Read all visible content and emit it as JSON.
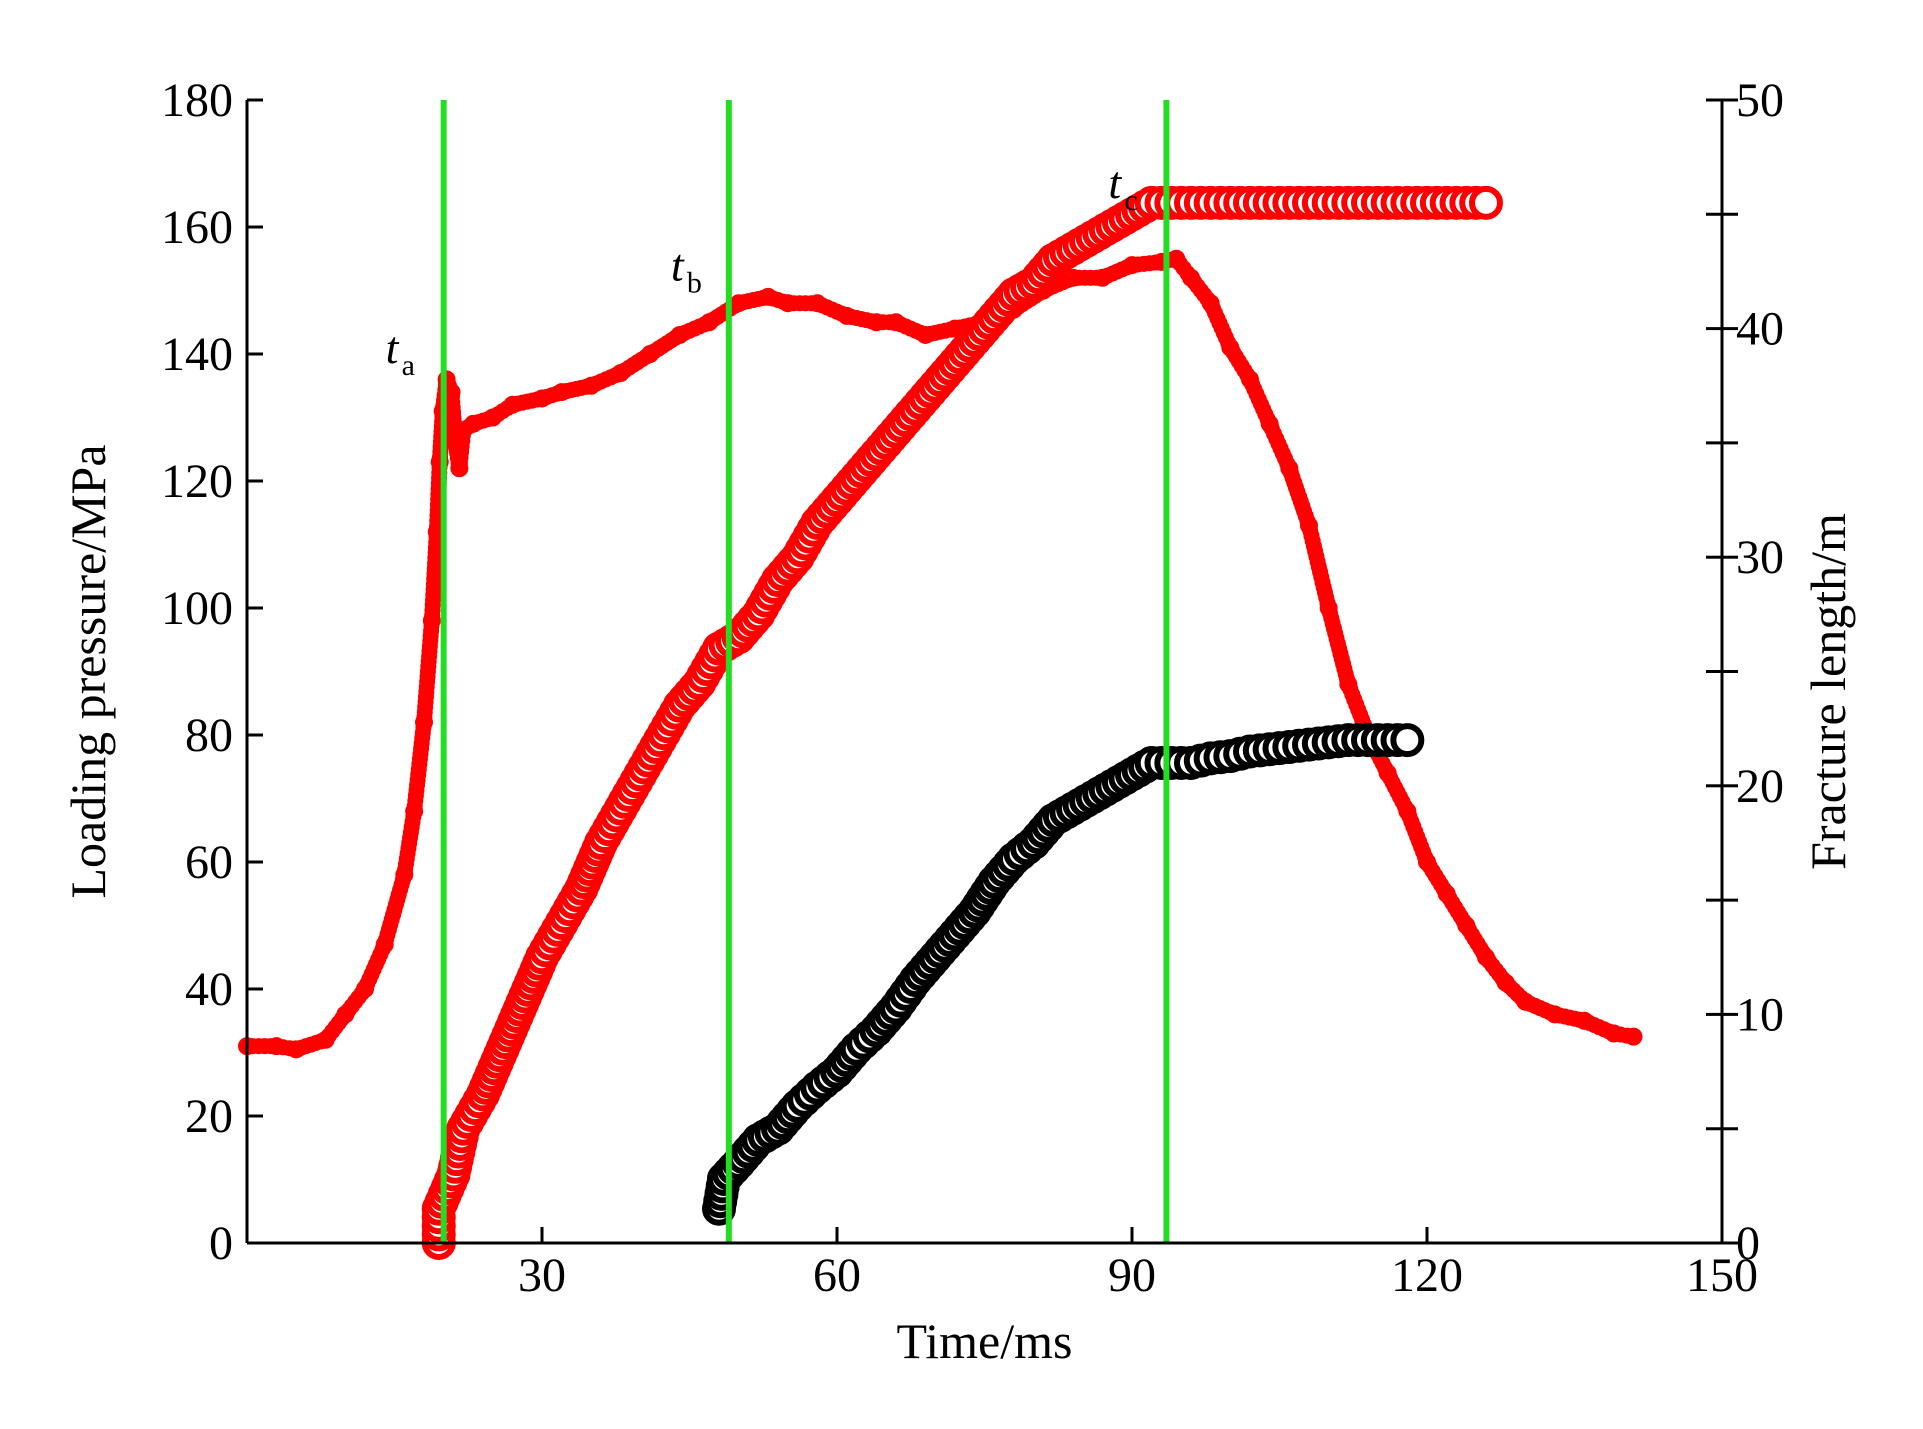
{
  "chart_data": {
    "type": "scatter",
    "xlabel": "Time/ms",
    "ylabel_left": "Loading pressure/MPa",
    "ylabel_right": "Fracture length/m",
    "xlim": [
      0,
      150
    ],
    "ylim_left": [
      0,
      180
    ],
    "ylim_right": [
      0,
      50
    ],
    "grid": false,
    "x_ticks": [
      {
        "value": 30,
        "label": "30"
      },
      {
        "value": 60,
        "label": "60"
      },
      {
        "value": 90,
        "label": "90"
      },
      {
        "value": 120,
        "label": "120"
      },
      {
        "value": 150,
        "label": "150"
      }
    ],
    "y_left_ticks": [
      {
        "value": 0,
        "label": "0"
      },
      {
        "value": 20,
        "label": "20"
      },
      {
        "value": 40,
        "label": "40"
      },
      {
        "value": 60,
        "label": "60"
      },
      {
        "value": 80,
        "label": "80"
      },
      {
        "value": 100,
        "label": "100"
      },
      {
        "value": 120,
        "label": "120"
      },
      {
        "value": 140,
        "label": "140"
      },
      {
        "value": 160,
        "label": "160"
      },
      {
        "value": 180,
        "label": "180"
      }
    ],
    "y_right_ticks": [
      {
        "value": 0,
        "label": "0"
      },
      {
        "value": 10,
        "label": "10"
      },
      {
        "value": 20,
        "label": "20"
      },
      {
        "value": 30,
        "label": "30"
      },
      {
        "value": 40,
        "label": "40"
      },
      {
        "value": 50,
        "label": "50"
      }
    ],
    "y_right_minor_ticks": [
      5,
      15,
      25,
      35,
      45
    ],
    "vertical_markers": [
      {
        "x": 20,
        "label": "t",
        "sub": "a",
        "label_y": 137
      },
      {
        "x": 49,
        "label": "t",
        "sub": "b",
        "label_y": 150
      },
      {
        "x": 93.5,
        "label": "t",
        "sub": "c",
        "label_y": 163
      }
    ],
    "series": [
      {
        "axis": "left",
        "color": "#ff0000",
        "marker": "dot",
        "points": [
          [
            0,
            31
          ],
          [
            3,
            31
          ],
          [
            5,
            30.5
          ],
          [
            8,
            32
          ],
          [
            10,
            36
          ],
          [
            12,
            40
          ],
          [
            14,
            47
          ],
          [
            16,
            58
          ],
          [
            17,
            68
          ],
          [
            18,
            82
          ],
          [
            18.8,
            98
          ],
          [
            19.3,
            112
          ],
          [
            19.6,
            123
          ],
          [
            19.9,
            131
          ],
          [
            20.3,
            136
          ],
          [
            20.8,
            134
          ],
          [
            21.2,
            126
          ],
          [
            21.6,
            122
          ],
          [
            22,
            128
          ],
          [
            23,
            129
          ],
          [
            25,
            130
          ],
          [
            27,
            132
          ],
          [
            30,
            133
          ],
          [
            32,
            134
          ],
          [
            35,
            135
          ],
          [
            38,
            137
          ],
          [
            41,
            140
          ],
          [
            44,
            143
          ],
          [
            47,
            145
          ],
          [
            50,
            148
          ],
          [
            53,
            149
          ],
          [
            55,
            148
          ],
          [
            58,
            148
          ],
          [
            61,
            146
          ],
          [
            64,
            145
          ],
          [
            66,
            145
          ],
          [
            69,
            143
          ],
          [
            72,
            144
          ],
          [
            75,
            145
          ],
          [
            78,
            147
          ],
          [
            81,
            150
          ],
          [
            84,
            152
          ],
          [
            87,
            152
          ],
          [
            90,
            154
          ],
          [
            93,
            154.5
          ],
          [
            94.5,
            155
          ],
          [
            96,
            152
          ],
          [
            98,
            148
          ],
          [
            100,
            141
          ],
          [
            102,
            136
          ],
          [
            104,
            129
          ],
          [
            106,
            122
          ],
          [
            108,
            113
          ],
          [
            110,
            100
          ],
          [
            112,
            88
          ],
          [
            114,
            80
          ],
          [
            116,
            74
          ],
          [
            118,
            68
          ],
          [
            120,
            60
          ],
          [
            122,
            55
          ],
          [
            124,
            50
          ],
          [
            126,
            45
          ],
          [
            128,
            41
          ],
          [
            130,
            38
          ],
          [
            133,
            36
          ],
          [
            136,
            35
          ],
          [
            139,
            33
          ],
          [
            141,
            32.5
          ]
        ]
      },
      {
        "axis": "right",
        "color": "#ff0000",
        "marker": "ring",
        "points": [
          [
            19.5,
            0
          ],
          [
            19.5,
            1.5
          ],
          [
            21,
            3
          ],
          [
            22,
            5
          ],
          [
            24,
            6.5
          ],
          [
            26,
            8.5
          ],
          [
            28,
            10.5
          ],
          [
            30,
            12.5
          ],
          [
            32,
            14
          ],
          [
            34,
            15.5
          ],
          [
            36,
            17.5
          ],
          [
            38,
            19
          ],
          [
            40,
            20.5
          ],
          [
            42,
            22
          ],
          [
            44,
            23.5
          ],
          [
            46,
            24.5
          ],
          [
            48,
            26
          ],
          [
            50,
            26.5
          ],
          [
            52,
            27.5
          ],
          [
            54,
            29
          ],
          [
            56,
            30
          ],
          [
            58,
            31.5
          ],
          [
            60,
            32.5
          ],
          [
            62,
            33.5
          ],
          [
            64,
            34.5
          ],
          [
            66,
            35.5
          ],
          [
            68,
            36.5
          ],
          [
            70,
            37.5
          ],
          [
            72,
            38.5
          ],
          [
            74,
            39.5
          ],
          [
            76,
            40.5
          ],
          [
            78,
            41.5
          ],
          [
            80,
            42
          ],
          [
            82,
            43
          ],
          [
            84,
            43.5
          ],
          [
            86,
            44
          ],
          [
            88,
            44.5
          ],
          [
            90,
            45
          ],
          [
            92,
            45.5
          ],
          [
            94,
            45.5
          ],
          [
            96,
            45.5
          ],
          [
            98,
            45.5
          ],
          [
            100,
            45.5
          ],
          [
            102,
            45.5
          ],
          [
            104,
            45.5
          ],
          [
            106,
            45.5
          ],
          [
            108,
            45.5
          ],
          [
            110,
            45.5
          ],
          [
            112,
            45.5
          ],
          [
            114,
            45.5
          ],
          [
            116,
            45.5
          ],
          [
            118,
            45.5
          ],
          [
            120,
            45.5
          ],
          [
            122,
            45.5
          ],
          [
            124,
            45.5
          ],
          [
            126,
            45.5
          ]
        ]
      },
      {
        "axis": "right",
        "color": "#000000",
        "marker": "ring",
        "points": [
          [
            48,
            1.5
          ],
          [
            48.5,
            2.8
          ],
          [
            50,
            3.5
          ],
          [
            52,
            4.5
          ],
          [
            54,
            5
          ],
          [
            56,
            6
          ],
          [
            58,
            6.8
          ],
          [
            60,
            7.5
          ],
          [
            62,
            8.5
          ],
          [
            64,
            9.3
          ],
          [
            66,
            10.3
          ],
          [
            68,
            11.5
          ],
          [
            70,
            12.5
          ],
          [
            72,
            13.5
          ],
          [
            74,
            14.5
          ],
          [
            76,
            15.8
          ],
          [
            78,
            16.8
          ],
          [
            80,
            17.5
          ],
          [
            82,
            18.5
          ],
          [
            84,
            19
          ],
          [
            86,
            19.5
          ],
          [
            88,
            20
          ],
          [
            90,
            20.5
          ],
          [
            92,
            21
          ],
          [
            94,
            21
          ],
          [
            96,
            21
          ],
          [
            98,
            21.2
          ],
          [
            100,
            21.3
          ],
          [
            102,
            21.5
          ],
          [
            104,
            21.6
          ],
          [
            106,
            21.7
          ],
          [
            108,
            21.8
          ],
          [
            110,
            21.9
          ],
          [
            112,
            22
          ],
          [
            114,
            22
          ],
          [
            116,
            22
          ],
          [
            118,
            22
          ]
        ]
      }
    ]
  }
}
